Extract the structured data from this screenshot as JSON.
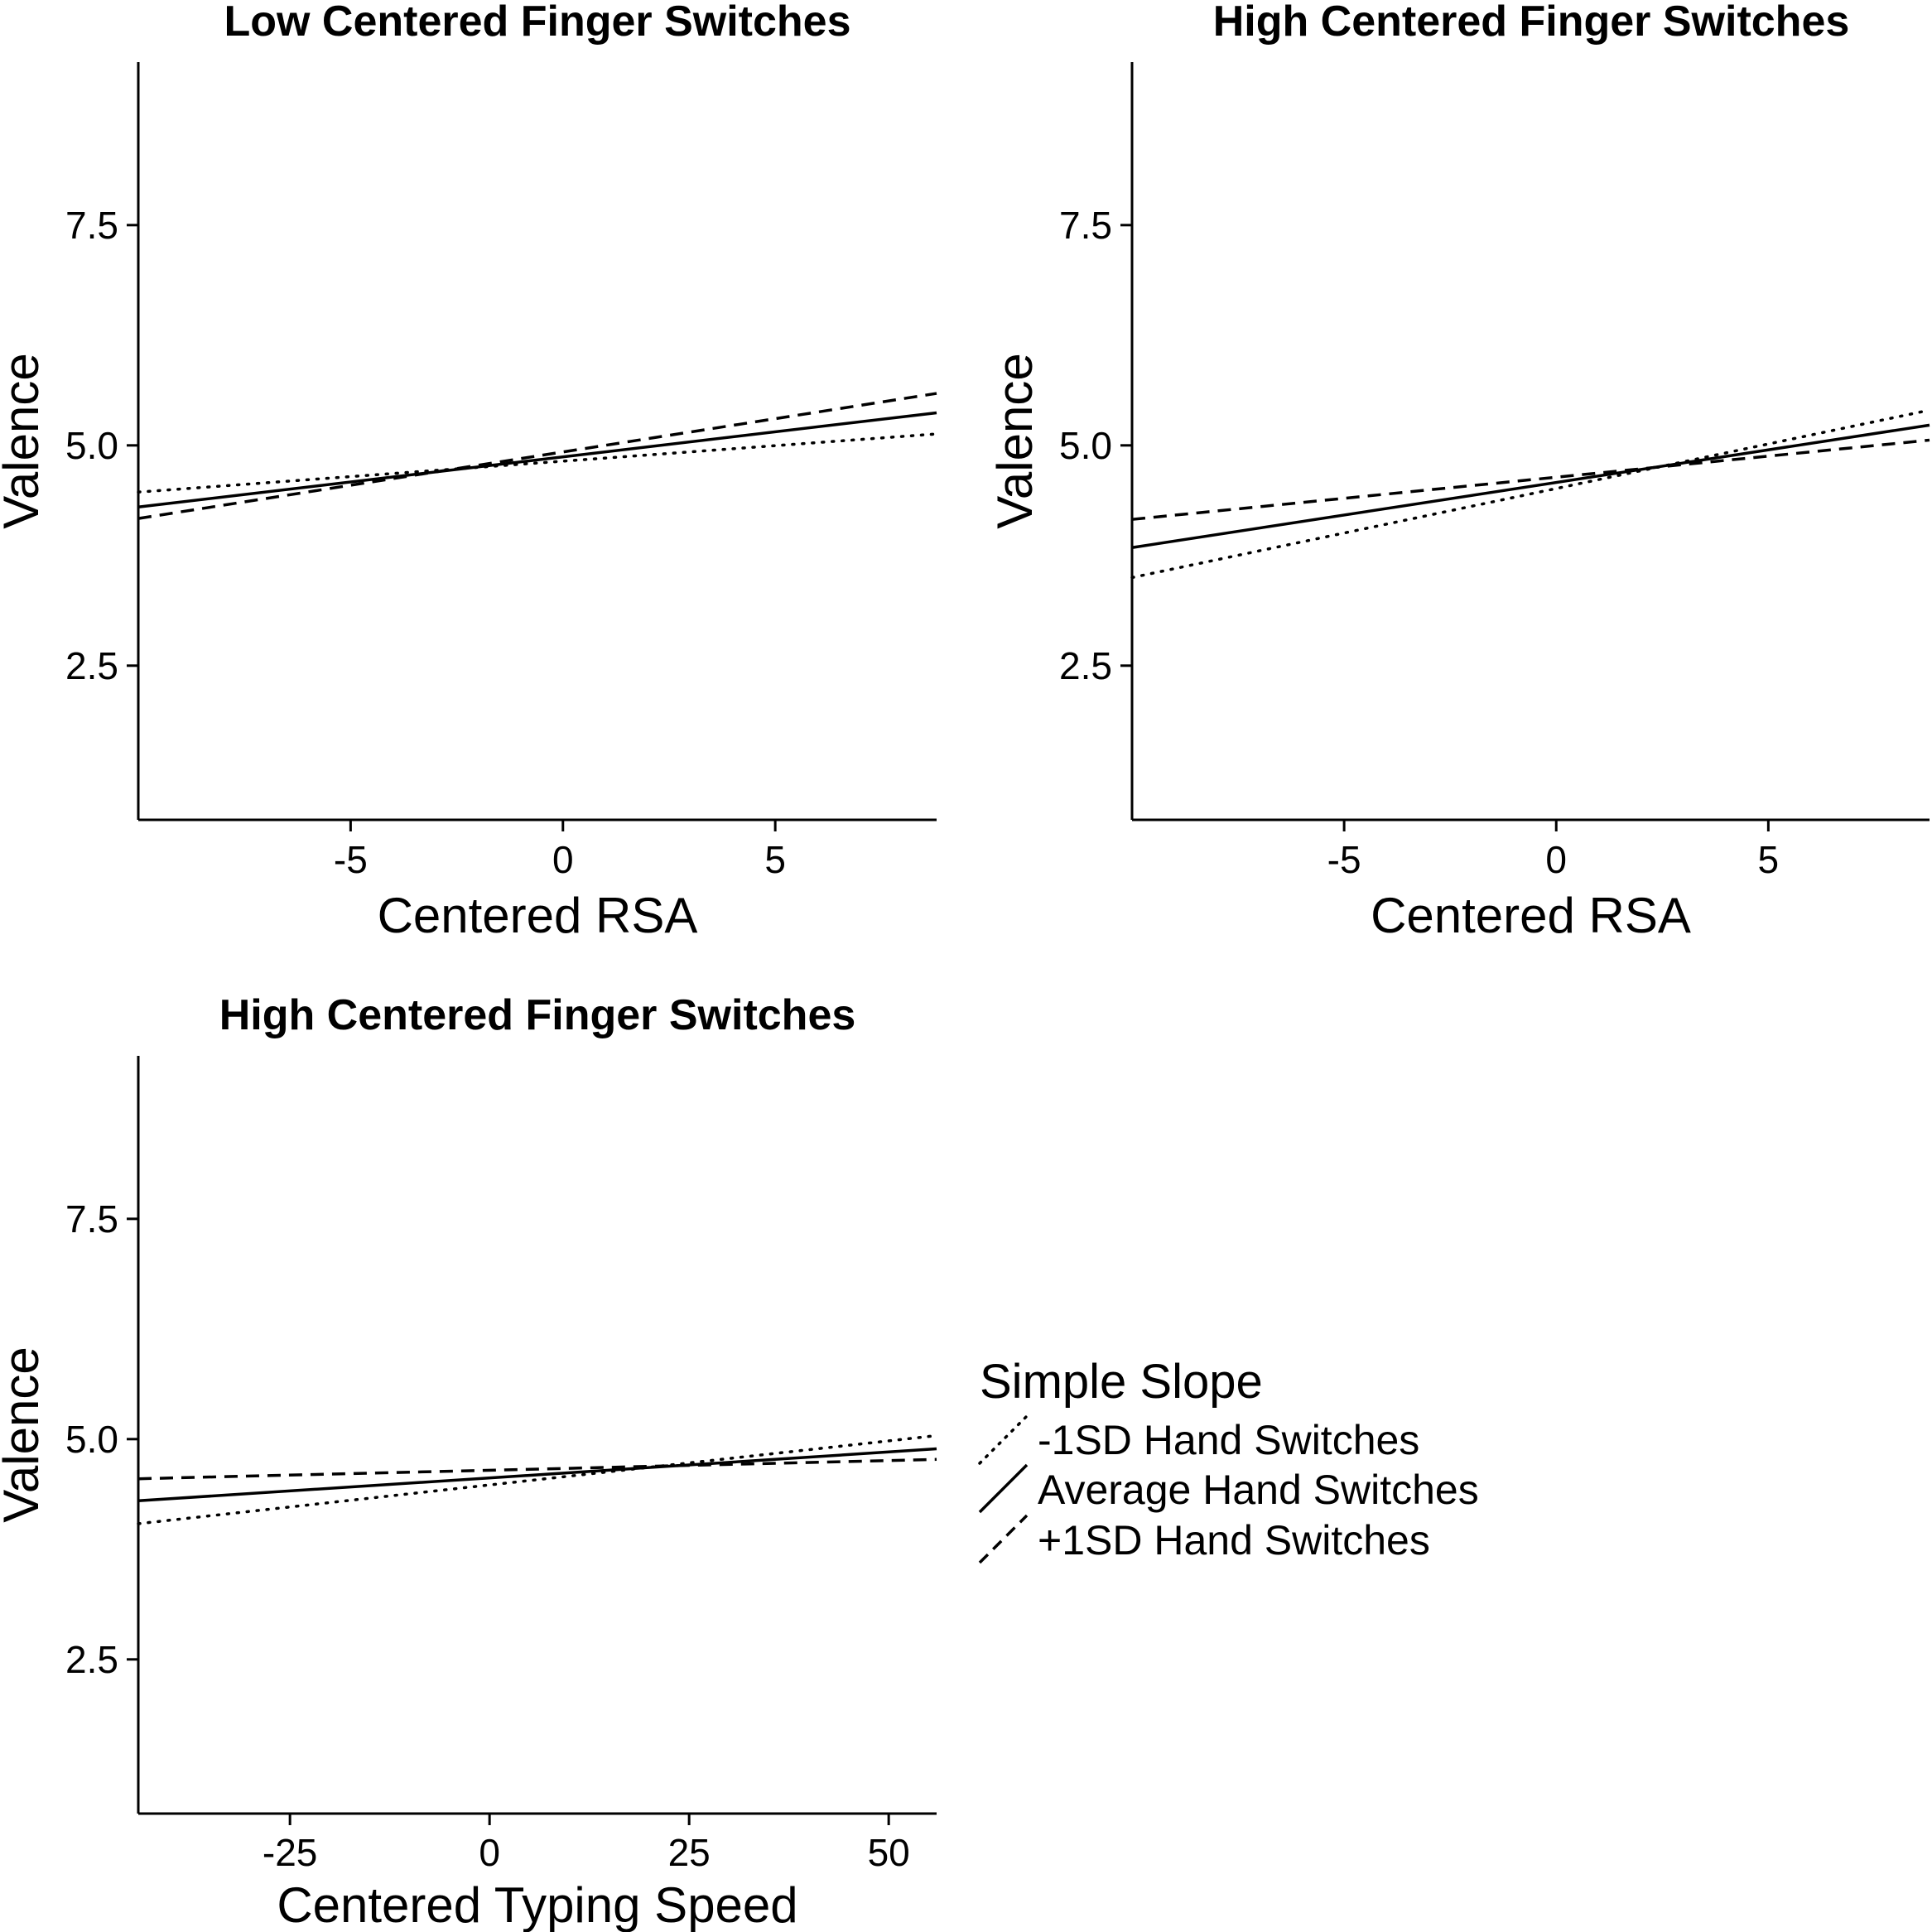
{
  "chart_data": [
    {
      "type": "line",
      "title": "Low Centered Finger Switches",
      "xlabel": "Centered RSA",
      "ylabel": "Valence",
      "xlim": [
        -10,
        8.8
      ],
      "ylim": [
        0.75,
        9.35
      ],
      "xticks": [
        "-5",
        "0",
        "5"
      ],
      "xtick_values": [
        -5,
        0,
        5
      ],
      "yticks": [
        "2.5",
        "5.0",
        "7.5"
      ],
      "ytick_values": [
        2.5,
        5.0,
        7.5
      ],
      "series": [
        {
          "name": "-1SD Hand Switches",
          "linetype": "dotted",
          "x": [
            -10,
            8.8
          ],
          "y": [
            4.47,
            5.13
          ]
        },
        {
          "name": "Average Hand Switches",
          "linetype": "solid",
          "x": [
            -10,
            8.8
          ],
          "y": [
            4.3,
            5.37
          ]
        },
        {
          "name": "+1SD Hand Switches",
          "linetype": "dashed",
          "x": [
            -10,
            8.8
          ],
          "y": [
            4.17,
            5.59
          ]
        }
      ]
    },
    {
      "type": "line",
      "title": "High Centered Finger Switches",
      "xlabel": "Centered RSA",
      "ylabel": "Valence",
      "xlim": [
        -10,
        8.8
      ],
      "ylim": [
        0.75,
        9.35
      ],
      "xticks": [
        "-5",
        "0",
        "5"
      ],
      "xtick_values": [
        -5,
        0,
        5
      ],
      "yticks": [
        "2.5",
        "5.0",
        "7.5"
      ],
      "ytick_values": [
        2.5,
        5.0,
        7.5
      ],
      "series": [
        {
          "name": "-1SD Hand Switches",
          "linetype": "dotted",
          "x": [
            -10,
            8.8
          ],
          "y": [
            3.5,
            5.4
          ]
        },
        {
          "name": "Average Hand Switches",
          "linetype": "solid",
          "x": [
            -10,
            8.8
          ],
          "y": [
            3.84,
            5.23
          ]
        },
        {
          "name": "+1SD Hand Switches",
          "linetype": "dashed",
          "x": [
            -10,
            8.8
          ],
          "y": [
            4.16,
            5.06
          ]
        }
      ]
    },
    {
      "type": "line",
      "title": "High Centered Finger Switches",
      "xlabel": "Centered Typing Speed",
      "ylabel": "Valence",
      "xlim": [
        -44,
        56
      ],
      "ylim": [
        0.75,
        9.35
      ],
      "xticks": [
        "-25",
        "0",
        "25",
        "50"
      ],
      "xtick_values": [
        -25,
        0,
        25,
        50
      ],
      "yticks": [
        "2.5",
        "5.0",
        "7.5"
      ],
      "ytick_values": [
        2.5,
        5.0,
        7.5
      ],
      "series": [
        {
          "name": "-1SD Hand Switches",
          "linetype": "dotted",
          "x": [
            -44,
            56
          ],
          "y": [
            4.04,
            5.04
          ]
        },
        {
          "name": "Average Hand Switches",
          "linetype": "solid",
          "x": [
            -44,
            56
          ],
          "y": [
            4.3,
            4.89
          ]
        },
        {
          "name": "+1SD Hand Switches",
          "linetype": "dashed",
          "x": [
            -44,
            56
          ],
          "y": [
            4.55,
            4.77
          ]
        }
      ]
    }
  ],
  "legend": {
    "title": "Simple Slope",
    "placement": "right-middle",
    "items": [
      {
        "label": "-1SD Hand Switches",
        "linetype": "dotted"
      },
      {
        "label": "Average Hand Switches",
        "linetype": "solid"
      },
      {
        "label": "+1SD Hand Switches",
        "linetype": "dashed"
      }
    ]
  },
  "colors": {
    "line": "#000000",
    "background": "#ffffff"
  }
}
